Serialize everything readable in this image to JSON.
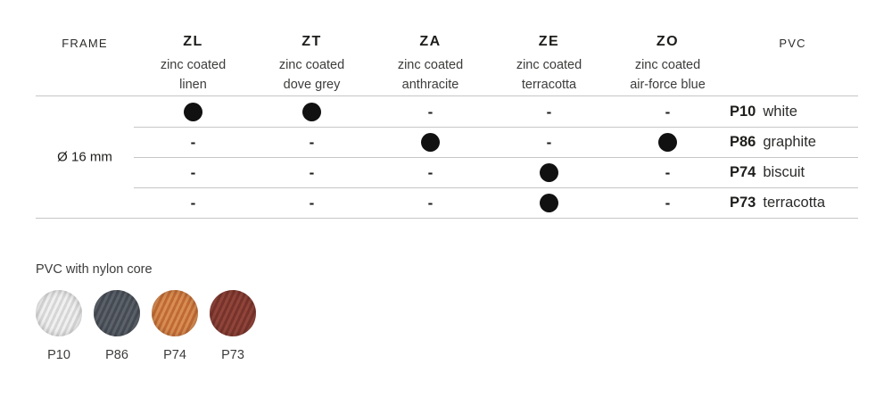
{
  "table": {
    "frame_header": "FRAME",
    "pvc_header": "PVC",
    "frame_label": "Ø 16 mm",
    "columns": [
      {
        "code": "ZL",
        "desc1": "zinc coated",
        "desc2": "linen"
      },
      {
        "code": "ZT",
        "desc1": "zinc coated",
        "desc2": "dove grey"
      },
      {
        "code": "ZA",
        "desc1": "zinc coated",
        "desc2": "anthracite"
      },
      {
        "code": "ZE",
        "desc1": "zinc coated",
        "desc2": "terracotta"
      },
      {
        "code": "ZO",
        "desc1": "zinc coated",
        "desc2": "air-force blue"
      }
    ],
    "rows": [
      {
        "cells": [
          "dot",
          "dot",
          "-",
          "-",
          "-"
        ],
        "pvc_code": "P10",
        "pvc_name": "white"
      },
      {
        "cells": [
          "-",
          "-",
          "dot",
          "-",
          "dot"
        ],
        "pvc_code": "P86",
        "pvc_name": "graphite"
      },
      {
        "cells": [
          "-",
          "-",
          "-",
          "dot",
          "-"
        ],
        "pvc_code": "P74",
        "pvc_name": "biscuit"
      },
      {
        "cells": [
          "-",
          "-",
          "-",
          "dot",
          "-"
        ],
        "pvc_code": "P73",
        "pvc_name": "terracotta"
      }
    ]
  },
  "legend": {
    "title": "PVC with nylon core",
    "swatches": [
      {
        "code": "P10",
        "base": "#d6d6d6",
        "stripe": "#f0f0f0"
      },
      {
        "code": "P86",
        "base": "#464b52",
        "stripe": "#5b626b"
      },
      {
        "code": "P74",
        "base": "#bf6a35",
        "stripe": "#d88d52"
      },
      {
        "code": "P73",
        "base": "#77332b",
        "stripe": "#90453a"
      }
    ],
    "dot_color": "#111111",
    "line_color": "#c6c6c6"
  }
}
